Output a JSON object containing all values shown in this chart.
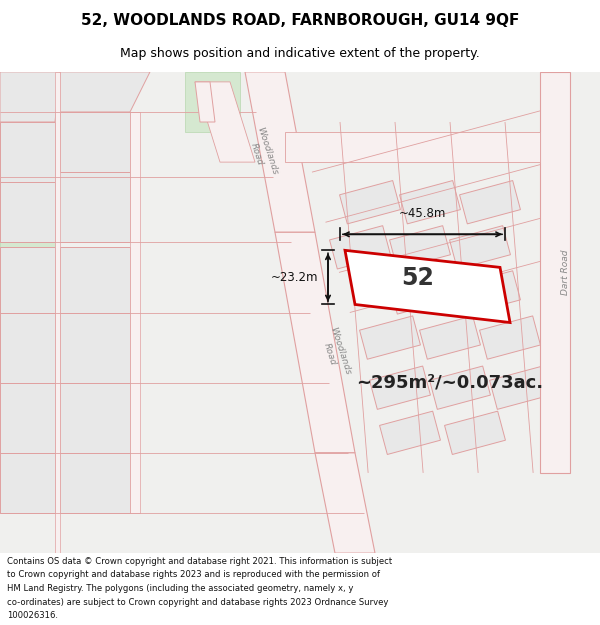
{
  "title": "52, WOODLANDS ROAD, FARNBOROUGH, GU14 9QF",
  "subtitle": "Map shows position and indicative extent of the property.",
  "area_text": "~295m²/~0.073ac.",
  "number_label": "52",
  "dim_width": "~45.8m",
  "dim_height": "~23.2m",
  "footer_lines": [
    "Contains OS data © Crown copyright and database right 2021. This information is subject",
    "to Crown copyright and database rights 2023 and is reproduced with the permission of",
    "HM Land Registry. The polygons (including the associated geometry, namely x, y",
    "co-ordinates) are subject to Crown copyright and database rights 2023 Ordnance Survey",
    "100026316."
  ],
  "map_bg": "#f0f0ee",
  "greenspace_color": "#d8e8d0",
  "block_fill": "#e8e8e8",
  "block_edge": "#e0a0a0",
  "road_fill": "#f8f0f0",
  "road_edge": "#e0a0a0",
  "plot_fill": "#ffffff",
  "plot_edge": "#cc0000",
  "dim_color": "#111111",
  "text_color": "#333333",
  "title_color": "#000000"
}
